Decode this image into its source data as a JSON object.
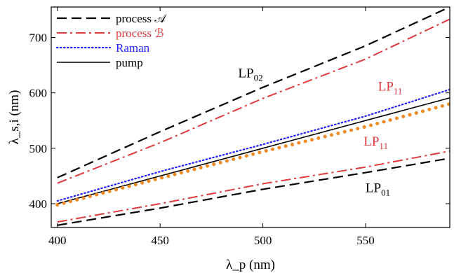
{
  "chart_data": {
    "type": "line",
    "xlabel": "λ_p (nm)",
    "ylabel": "λ_s,i (nm)",
    "xlim": [
      397,
      591
    ],
    "ylim": [
      357,
      755
    ],
    "x_ticks": [
      400,
      450,
      500,
      550
    ],
    "y_ticks": [
      400,
      500,
      600,
      700
    ],
    "grid": false,
    "legend_position": "top-left",
    "legend": [
      {
        "label": "process 𝒜",
        "color": "#000000",
        "style": "dashed"
      },
      {
        "label": "process ℬ",
        "color": "#e0393e",
        "style": "dashdot"
      },
      {
        "label": "Raman",
        "color": "#1f1fff",
        "style": "dotted"
      },
      {
        "label": "pump",
        "color": "#000000",
        "style": "solid"
      }
    ],
    "series": [
      {
        "group": "process 𝒜",
        "mode": "LP02",
        "color": "#000000",
        "style": "dashed",
        "points": [
          [
            400,
            447
          ],
          [
            450,
            530
          ],
          [
            500,
            610
          ],
          [
            550,
            685
          ],
          [
            591,
            755
          ]
        ]
      },
      {
        "group": "process 𝒜",
        "mode": "LP01",
        "color": "#000000",
        "style": "dashed",
        "points": [
          [
            400,
            361
          ],
          [
            450,
            392
          ],
          [
            500,
            426
          ],
          [
            550,
            456
          ],
          [
            591,
            482
          ]
        ]
      },
      {
        "group": "process ℬ",
        "mode": "LP11",
        "color": "#e0393e",
        "style": "dashdot",
        "points": [
          [
            400,
            437
          ],
          [
            450,
            510
          ],
          [
            500,
            590
          ],
          [
            550,
            661
          ],
          [
            591,
            733
          ]
        ]
      },
      {
        "group": "process ℬ",
        "mode": "LP11",
        "color": "#e0393e",
        "style": "dashdot",
        "points": [
          [
            400,
            367
          ],
          [
            450,
            400
          ],
          [
            500,
            436
          ],
          [
            550,
            466
          ],
          [
            591,
            495
          ]
        ]
      },
      {
        "name": "Raman",
        "color": "#1f1fff",
        "style": "dotted",
        "points": [
          [
            400,
            405
          ],
          [
            450,
            458
          ],
          [
            500,
            507
          ],
          [
            550,
            558
          ],
          [
            591,
            606
          ]
        ]
      },
      {
        "name": "pump",
        "color": "#000000",
        "style": "solid",
        "points": [
          [
            400,
            400
          ],
          [
            450,
            450
          ],
          [
            500,
            500
          ],
          [
            550,
            550
          ],
          [
            591,
            591
          ]
        ]
      },
      {
        "color": "#f08a24",
        "style": "bigdots",
        "points": [
          [
            400,
            398
          ],
          [
            450,
            446
          ],
          [
            500,
            494
          ],
          [
            550,
            539
          ],
          [
            591,
            580
          ]
        ]
      }
    ],
    "annotations": [
      {
        "base": "LP",
        "sub": "02",
        "color": "#000000",
        "x": 494,
        "y": 628
      },
      {
        "base": "LP",
        "sub": "11",
        "color": "#e0393e",
        "x": 562,
        "y": 604
      },
      {
        "base": "LP",
        "sub": "11",
        "color": "#e0393e",
        "x": 555,
        "y": 505
      },
      {
        "base": "LP",
        "sub": "01",
        "color": "#000000",
        "x": 556,
        "y": 421
      }
    ]
  }
}
